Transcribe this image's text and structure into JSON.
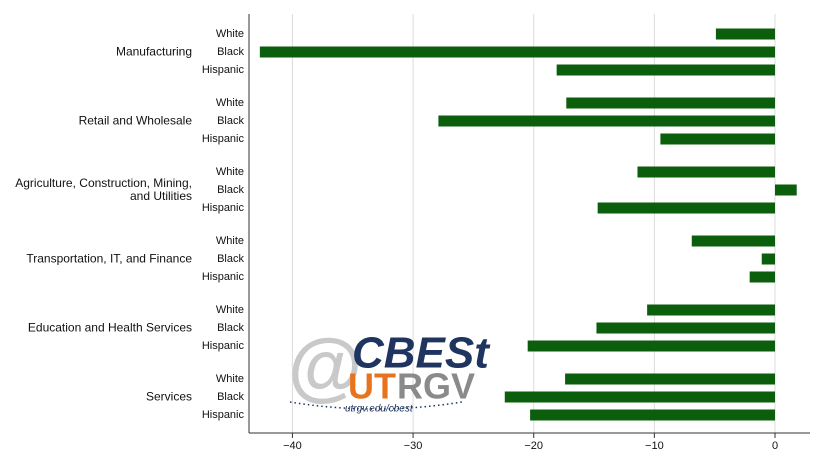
{
  "chart_data": {
    "type": "hbar-grouped",
    "color": "#0b5e0b",
    "grid": true,
    "xlim": [
      -43.6,
      2.9
    ],
    "xticks": [
      {
        "value": -40,
        "label": "−40"
      },
      {
        "value": -30,
        "label": "−30"
      },
      {
        "value": -20,
        "label": "−20"
      },
      {
        "value": -10,
        "label": "−10"
      },
      0
    ],
    "groups": [
      {
        "name": "Manufacturing",
        "categories": [
          "White",
          "Black",
          "Hispanic"
        ],
        "values": [
          -4.9,
          -42.7,
          -18.1
        ]
      },
      {
        "name": "Retail and Wholesale",
        "categories": [
          "White",
          "Black",
          "Hispanic"
        ],
        "values": [
          -17.3,
          -27.9,
          -9.5
        ]
      },
      {
        "name": "Agriculture, Construction, Mining, and Utilities",
        "categories": [
          "White",
          "Black",
          "Hispanic"
        ],
        "values": [
          -11.4,
          1.8,
          -14.7
        ]
      },
      {
        "name": "Transportation, IT, and Finance",
        "categories": [
          "White",
          "Black",
          "Hispanic"
        ],
        "values": [
          -6.9,
          -1.1,
          -2.1
        ]
      },
      {
        "name": "Education and Health Services",
        "categories": [
          "White",
          "Black",
          "Hispanic"
        ],
        "values": [
          -10.6,
          -14.8,
          -20.5
        ]
      },
      {
        "name": "Services",
        "categories": [
          "White",
          "Black",
          "Hispanic"
        ],
        "values": [
          -17.4,
          -22.4,
          -20.3
        ]
      }
    ]
  },
  "logo": {
    "symbol": "@",
    "name": "CBESt",
    "ut": "UT",
    "rgv": "RGV",
    "url": "utrgv.edu/cbest"
  }
}
